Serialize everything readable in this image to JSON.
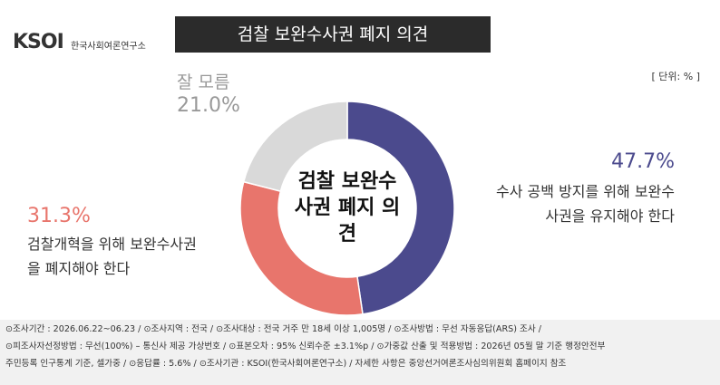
{
  "header": {
    "logo": "KSOI",
    "logo_sub": "한국사회여론연구소",
    "unit": "[ 단위: % ]"
  },
  "chart_data": {
    "type": "pie",
    "title": "검찰 보완수사권 폐지 의견",
    "center_label": "검찰 보완수사권 폐지 의견",
    "categories": [
      "수사 공백 방지를 위해 보완수사권을 유지해야 한다",
      "검찰개혁을 위해 보완수사권을 폐지해야 한다",
      "잘 모름"
    ],
    "values": [
      47.7,
      31.3,
      21.0
    ],
    "value_labels": [
      "47.7%",
      "31.3%",
      "21.0%"
    ],
    "colors": [
      "#4b4a8d",
      "#e8756c",
      "#d9d9d9"
    ]
  },
  "footer": {
    "lines": [
      "⊙조사기간 : 2026.06.22~06.23 / ⊙조사지역 : 전국 / ⊙조사대상 : 전국 거주 만 18세 이상 1,005명 / ⊙조사방법 : 무선 자동응답(ARS) 조사 /",
      "⊙피조사자선정방법 : 무선(100%) – 통신사 제공 가상번호 / ⊙표본오차 : 95% 신뢰수준 ±3.1%p / ⊙가중값 산출 및 적용방법 : 2026년 05월 말 기준 행정안전부",
      "주민등록 인구통계 기준, 셀가중 / ⊙응답률 : 5.6% / ⊙조사기관 : KSOI(한국사회여론연구소) / 자세한 사항은 중앙선거여론조사심의위원회 홈페이지 참조"
    ]
  }
}
